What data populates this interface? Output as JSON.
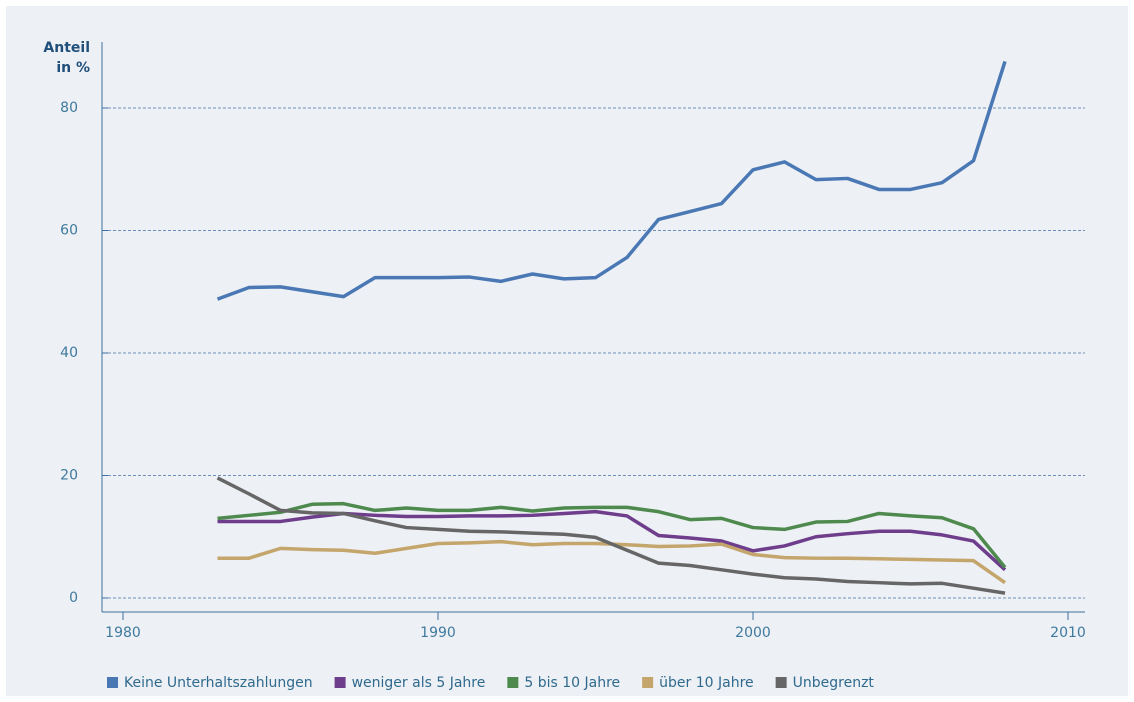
{
  "chart_data": {
    "type": "line",
    "y_label": "Anteil in %",
    "x": [
      1983,
      1984,
      1985,
      1986,
      1987,
      1988,
      1989,
      1990,
      1991,
      1992,
      1993,
      1994,
      1995,
      1996,
      1997,
      1998,
      1999,
      2000,
      2001,
      2002,
      2003,
      2004,
      2005,
      2006,
      2007,
      2008
    ],
    "series": [
      {
        "name": "Keine Unterhaltszahlungen",
        "color": "#4a78b5",
        "values": [
          48.8,
          50.7,
          50.8,
          50.0,
          49.2,
          52.3,
          52.3,
          52.3,
          52.4,
          51.7,
          52.9,
          52.1,
          52.3,
          55.6,
          61.8,
          63.1,
          64.4,
          69.9,
          71.2,
          68.3,
          68.5,
          66.7,
          66.7,
          67.8,
          71.4,
          87.6
        ]
      },
      {
        "name": "weniger als 5 Jahre",
        "color": "#6e3d8c",
        "values": [
          12.5,
          12.5,
          12.5,
          13.2,
          13.8,
          13.5,
          13.3,
          13.3,
          13.4,
          13.4,
          13.5,
          13.8,
          14.1,
          13.4,
          10.2,
          9.8,
          9.3,
          7.7,
          8.5,
          10.0,
          10.5,
          10.9,
          10.9,
          10.3,
          9.3,
          4.6
        ]
      },
      {
        "name": "5 bis 10 Jahre",
        "color": "#4e8a4e",
        "values": [
          13.0,
          13.5,
          14.0,
          15.3,
          15.4,
          14.3,
          14.7,
          14.3,
          14.3,
          14.8,
          14.2,
          14.7,
          14.8,
          14.8,
          14.1,
          12.8,
          13.0,
          11.5,
          11.2,
          12.4,
          12.5,
          13.8,
          13.4,
          13.1,
          11.3,
          5.0
        ]
      },
      {
        "name": "über 10 Jahre",
        "color": "#c4a56c",
        "values": [
          6.5,
          6.5,
          8.1,
          7.9,
          7.8,
          7.3,
          8.1,
          8.9,
          9.0,
          9.2,
          8.7,
          8.9,
          8.9,
          8.7,
          8.4,
          8.5,
          8.8,
          7.1,
          6.6,
          6.5,
          6.5,
          6.4,
          6.3,
          6.2,
          6.1,
          2.5
        ]
      },
      {
        "name": "Unbegrenzt",
        "color": "#666666",
        "values": [
          19.6,
          17.0,
          14.3,
          13.9,
          13.8,
          12.6,
          11.5,
          11.2,
          10.9,
          10.8,
          10.6,
          10.4,
          9.9,
          7.8,
          5.7,
          5.3,
          4.6,
          3.9,
          3.3,
          3.1,
          2.7,
          2.5,
          2.3,
          2.4,
          1.6,
          0.8
        ]
      }
    ],
    "xlim": [
      1978,
      2011
    ],
    "xticks": [
      1980,
      1990,
      2000,
      2010
    ],
    "ylim": [
      -2,
      88
    ],
    "yticks": [
      0,
      20,
      40,
      60,
      80
    ],
    "grid": true
  }
}
